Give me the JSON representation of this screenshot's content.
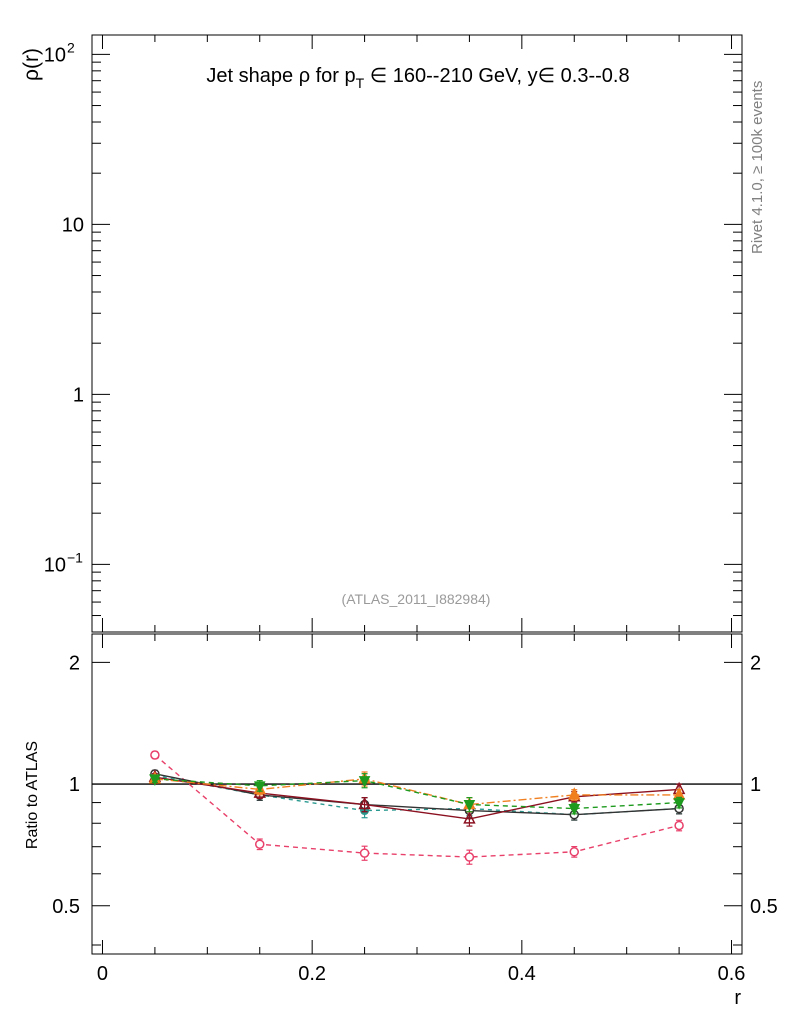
{
  "title": {
    "prefix": "Jet shape ρ for p",
    "sub": "T",
    "middle": " ∈ 160--210 GeV, y∈ 0.3--0.8"
  },
  "side_label": "Rivet 4.1.0, ≥ 100k events",
  "analysis_label": "(ATLAS_2011_I882984)",
  "colors": {
    "s1": "#e8406a",
    "s2": "#2a9a90",
    "s3": "#333333",
    "s4": "#8b1020",
    "s5": "#f07f20",
    "s6": "#1e9a1e"
  },
  "chart_data": [
    {
      "type": "line",
      "panel": "main",
      "ylabel": "ρ(r)",
      "yscale": "log",
      "ylim": [
        0.04,
        130
      ],
      "xlim": [
        -0.01,
        0.61
      ],
      "yticks": [
        {
          "value": 100,
          "label": "10",
          "exp": "2"
        },
        {
          "value": 10,
          "label": "10",
          "exp": ""
        },
        {
          "value": 1,
          "label": "1",
          "exp": ""
        },
        {
          "value": 0.1,
          "label": "10",
          "exp": "−1"
        }
      ],
      "series": []
    },
    {
      "type": "line",
      "panel": "ratio",
      "xlabel": "r",
      "ylabel": "Ratio to ATLAS",
      "yscale": "log",
      "ylim": [
        0.38,
        2.35
      ],
      "xlim": [
        -0.01,
        0.61
      ],
      "reference_line": 1,
      "xticks": [
        {
          "value": 0,
          "label": "0"
        },
        {
          "value": 0.2,
          "label": "0.2"
        },
        {
          "value": 0.4,
          "label": "0.4"
        },
        {
          "value": 0.6,
          "label": "0.6"
        }
      ],
      "yticks": [
        {
          "value": 2,
          "label": "2"
        },
        {
          "value": 1,
          "label": "1"
        },
        {
          "value": 0.5,
          "label": "0.5"
        }
      ],
      "x": [
        0.05,
        0.15,
        0.25,
        0.35,
        0.45,
        0.55
      ],
      "series": [
        {
          "key": "s1",
          "marker": "circle-open",
          "dash": "5,4",
          "values": [
            1.18,
            0.71,
            0.675,
            0.66,
            0.68,
            0.79
          ],
          "errors": [
            0.02,
            0.03,
            0.04,
            0.04,
            0.03,
            0.03
          ]
        },
        {
          "key": "s2",
          "marker": "circle-filled",
          "dash": "4,4",
          "values": [
            1.05,
            0.94,
            0.86,
            0.87,
            0.84,
            0.87
          ],
          "errors": [
            0.02,
            0.03,
            0.04,
            0.04,
            0.03,
            0.03
          ]
        },
        {
          "key": "s3",
          "marker": "circle-open",
          "dash": "",
          "values": [
            1.06,
            0.94,
            0.89,
            0.86,
            0.84,
            0.87
          ],
          "errors": [
            0.02,
            0.03,
            0.04,
            0.04,
            0.03,
            0.03
          ]
        },
        {
          "key": "s4",
          "marker": "triangle-open",
          "dash": "",
          "values": [
            1.04,
            0.95,
            0.89,
            0.82,
            0.93,
            0.97
          ],
          "errors": [
            0.02,
            0.03,
            0.04,
            0.04,
            0.03,
            0.03
          ]
        },
        {
          "key": "s5",
          "marker": "triangle-filled",
          "dash": "8,3,2,3",
          "values": [
            1.03,
            0.97,
            1.03,
            0.89,
            0.94,
            0.94
          ],
          "errors": [
            0.02,
            0.03,
            0.04,
            0.04,
            0.03,
            0.03
          ]
        },
        {
          "key": "s6",
          "marker": "triangle-down-filled",
          "dash": "5,4",
          "values": [
            1.03,
            0.99,
            1.02,
            0.89,
            0.87,
            0.9
          ],
          "errors": [
            0.02,
            0.03,
            0.04,
            0.04,
            0.03,
            0.03
          ]
        }
      ]
    }
  ]
}
